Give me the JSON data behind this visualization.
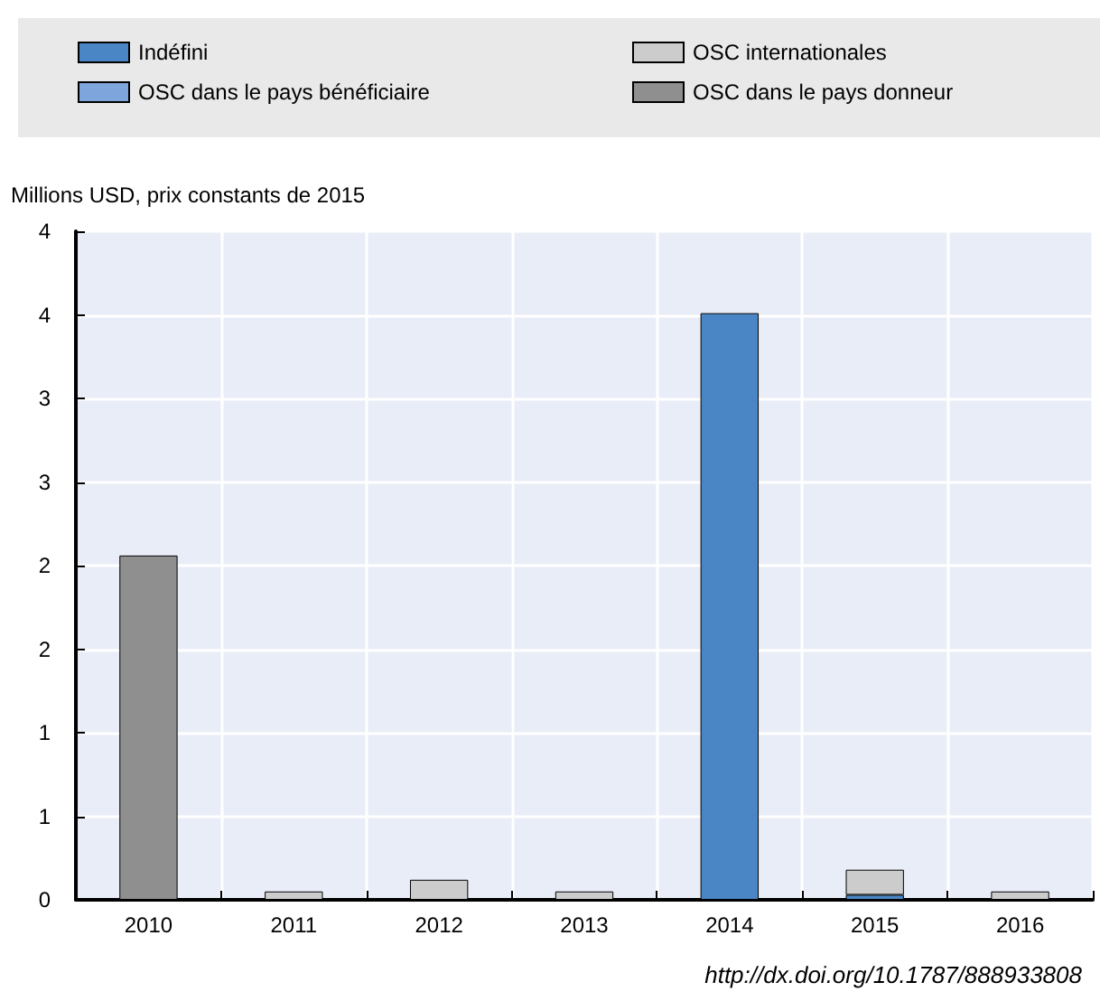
{
  "chart_data": {
    "type": "bar",
    "stacked": true,
    "ylabel": "Millions USD, prix constants de 2015",
    "categories": [
      "2010",
      "2011",
      "2012",
      "2013",
      "2014",
      "2015",
      "2016"
    ],
    "series": [
      {
        "name": "Indéfini",
        "color": "#4a86c6",
        "values": [
          0,
          0,
          0,
          0,
          3.51,
          0.03,
          0
        ]
      },
      {
        "name": "OSC internationales",
        "color": "#cccccc",
        "values": [
          0,
          0.05,
          0.12,
          0.05,
          0,
          0.15,
          0.05
        ]
      },
      {
        "name": "OSC dans le pays bénéficiaire",
        "color": "#7ea6dc",
        "values": [
          0,
          0,
          0,
          0,
          0,
          0,
          0
        ]
      },
      {
        "name": "OSC dans le pays donneur",
        "color": "#8f8f8f",
        "values": [
          2.06,
          0,
          0,
          0,
          0,
          0,
          0
        ]
      }
    ],
    "ylim": [
      0,
      4
    ],
    "yticks": [
      {
        "value": 0,
        "label": "0"
      },
      {
        "value": 0.5,
        "label": "1"
      },
      {
        "value": 1,
        "label": "1"
      },
      {
        "value": 1.5,
        "label": "2"
      },
      {
        "value": 2,
        "label": "2"
      },
      {
        "value": 2.5,
        "label": "3"
      },
      {
        "value": 3,
        "label": "3"
      },
      {
        "value": 3.5,
        "label": "4"
      },
      {
        "value": 4,
        "label": "4"
      }
    ],
    "grid": true,
    "legend": "top",
    "annotations": [
      "http://dx.doi.org/10.1787/888933808"
    ]
  }
}
